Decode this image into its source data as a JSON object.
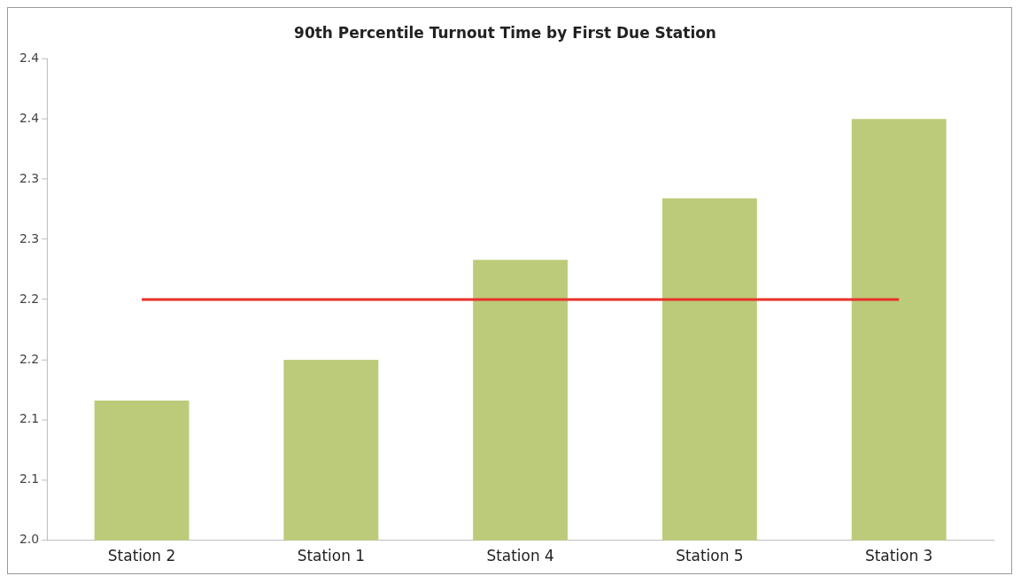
{
  "chart_data": {
    "type": "bar",
    "title": "90th Percentile Turnout Time by First Due Station",
    "categories": [
      "Station 2",
      "Station 1",
      "Station 4",
      "Station 5",
      "Station 3"
    ],
    "series": [
      {
        "color": "#bccb7a",
        "values": [
          2.116,
          2.15,
          2.233,
          2.284,
          2.35
        ]
      },
      {
        "type": "line",
        "color": "#e8312a",
        "values": [
          2.2,
          2.2,
          2.2,
          2.2,
          2.2
        ]
      }
    ],
    "ylim": [
      2.0,
      2.4
    ],
    "yticks": [
      {
        "value": 2.0,
        "label": "2.0"
      },
      {
        "value": 2.05,
        "label": "2.1"
      },
      {
        "value": 2.1,
        "label": "2.1"
      },
      {
        "value": 2.15,
        "label": "2.2"
      },
      {
        "value": 2.2,
        "label": "2.2"
      },
      {
        "value": 2.25,
        "label": "2.3"
      },
      {
        "value": 2.3,
        "label": "2.3"
      },
      {
        "value": 2.35,
        "label": "2.4"
      },
      {
        "value": 2.4,
        "label": "2.4"
      }
    ],
    "grid": false,
    "legend": false,
    "marker": "none",
    "line_style": "solid"
  }
}
